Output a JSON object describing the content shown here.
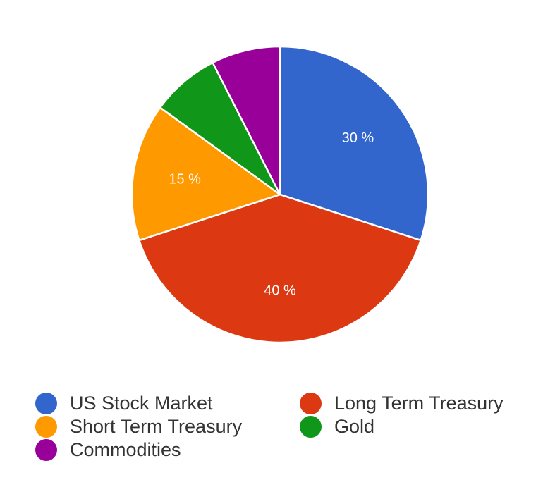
{
  "chart_data": {
    "type": "pie",
    "title": "",
    "slices": [
      {
        "label": "US Stock Market",
        "value": 30,
        "color": "#3366cc",
        "display_label": "30 %"
      },
      {
        "label": "Long Term Treasury",
        "value": 40,
        "color": "#dc3912",
        "display_label": "40 %"
      },
      {
        "label": "Short Term Treasury",
        "value": 15,
        "color": "#ff9900",
        "display_label": "15 %"
      },
      {
        "label": "Gold",
        "value": 7.5,
        "color": "#109618",
        "display_label": ""
      },
      {
        "label": "Commodities",
        "value": 7.5,
        "color": "#990099",
        "display_label": ""
      }
    ],
    "legend_position": "bottom",
    "start_angle": "top",
    "direction": "clockwise"
  }
}
